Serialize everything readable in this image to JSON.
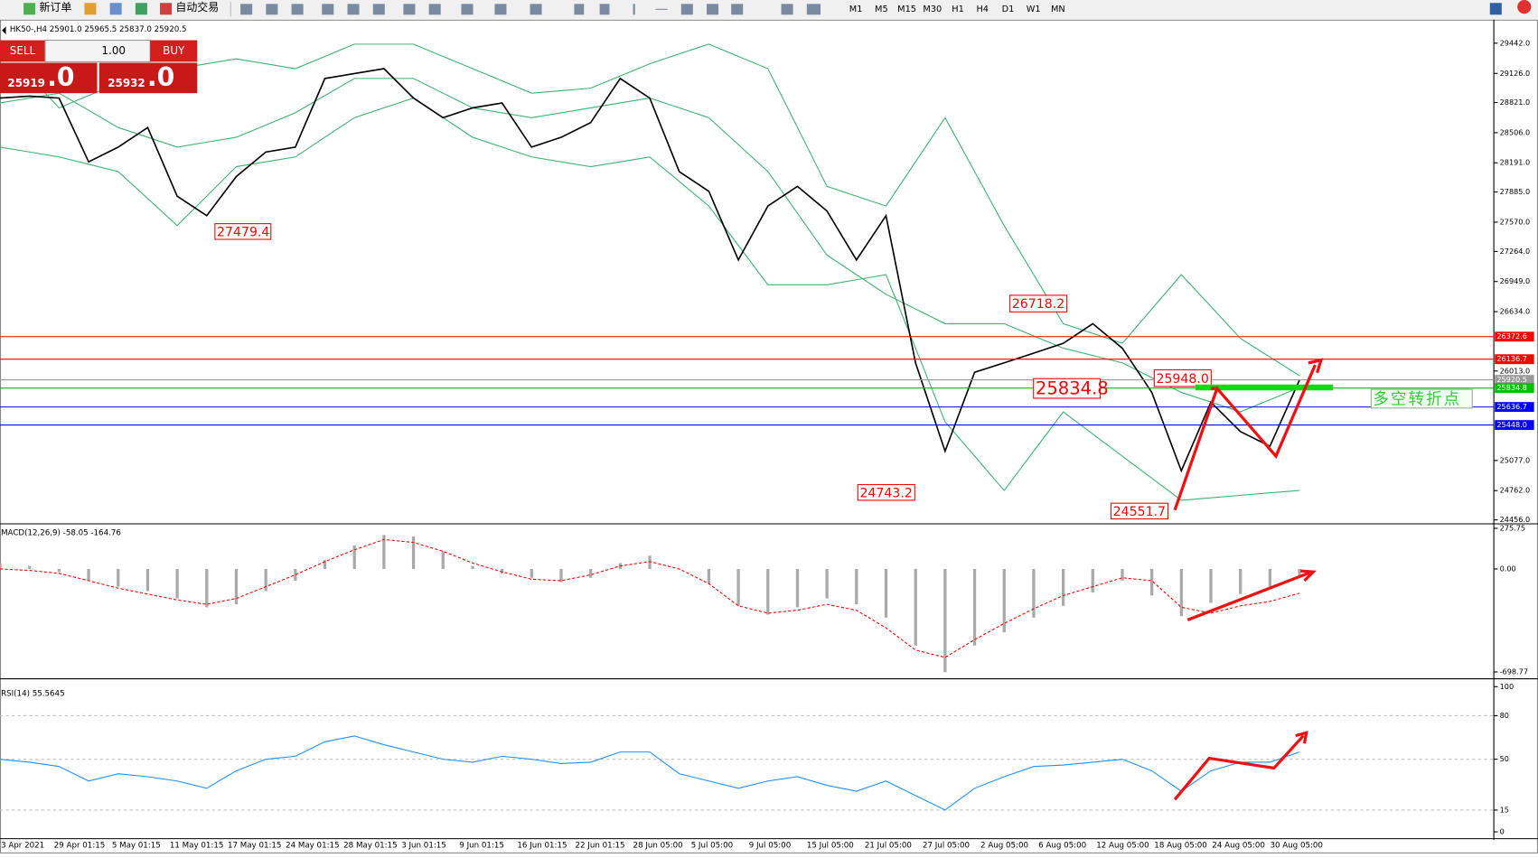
{
  "toolbar": {
    "new_order": "新订单",
    "auto_trading": "自动交易",
    "timeframes": [
      "M1",
      "M5",
      "M15",
      "M30",
      "H1",
      "H4",
      "D1",
      "W1",
      "MN"
    ]
  },
  "trade_panel": {
    "sell": "SELL",
    "lot": "1.00",
    "buy": "BUY",
    "bid_main": "25919",
    "bid_tail": ".0",
    "ask_main": "25932",
    "ask_tail": ".0"
  },
  "chart_header": "HK50-,H4  25901.0 25965.5 25837.0 25920.5",
  "time_axis": {
    "labels": [
      "3 Apr 2021",
      "29 Apr 01:15",
      "5 May 01:15",
      "11 May 01:15",
      "17 May 01:15",
      "24 May 01:15",
      "28 May 01:15",
      "3 Jun 01:15",
      "9 Jun 01:15",
      "16 Jun 01:15",
      "22 Jun 01:15",
      "28 Jun 05:00",
      "5 Jul 05:00",
      "9 Jul 05:00",
      "15 Jul 05:00",
      "21 Jul 05:00",
      "27 Jul 05:00",
      "2 Aug 05:00",
      "6 Aug 05:00",
      "12 Aug 05:00",
      "18 Aug 05:00",
      "24 Aug 05:00",
      "30 Aug 05:00"
    ]
  },
  "chart_data": [
    {
      "type": "line",
      "ylim": [
        24425,
        29668
      ],
      "yticks": [
        {
          "value": 29442,
          "label": "29442.0"
        },
        {
          "value": 29126,
          "label": "29126.0"
        },
        {
          "value": 28821,
          "label": "28821.0"
        },
        {
          "value": 28506,
          "label": "28506.0"
        },
        {
          "value": 28191,
          "label": "28191.0"
        },
        {
          "value": 27885,
          "label": "27885.0"
        },
        {
          "value": 27570,
          "label": "27570.0"
        },
        {
          "value": 27264,
          "label": "27264.0"
        },
        {
          "value": 26949,
          "label": "26949.0"
        },
        {
          "value": 26634,
          "label": "26634.0"
        },
        {
          "value": 26013,
          "label": "26013.0"
        },
        {
          "value": 25077,
          "label": "25077.0"
        },
        {
          "value": 24762,
          "label": "24762.0"
        },
        {
          "value": 24456,
          "label": "24456.0"
        }
      ],
      "series": [
        {
          "color": "#3cb371",
          "values": [
            29022,
            29099,
            28765,
            28894,
            29022,
            29099,
            29176,
            29227,
            29278,
            29227,
            29176,
            29304,
            29432,
            29432,
            29432,
            29304,
            29176,
            29048,
            28919,
            28945,
            28971,
            29099,
            29227,
            29330,
            29432,
            29304,
            29176,
            28561,
            27945,
            27842,
            27739,
            28201,
            28663,
            28099,
            27534,
            27021,
            26508,
            26406,
            26303,
            26662,
            27021,
            26688,
            26354,
            26159,
            25964
          ]
        },
        {
          "color": "#3cb371",
          "values": [
            28817,
            28868,
            28919,
            28740,
            28560,
            28458,
            28355,
            28407,
            28458,
            28586,
            28714,
            28894,
            29073,
            29073,
            29073,
            28919,
            28765,
            28714,
            28663,
            28714,
            28765,
            28817,
            28868,
            28766,
            28663,
            28381,
            28099,
            27663,
            27226,
            27021,
            26816,
            26662,
            26508,
            26508,
            26508,
            26380,
            26252,
            26175,
            26098,
            25944,
            25790,
            25688,
            25585,
            25713,
            25841
          ]
        },
        {
          "color": "#3cb371",
          "values": [
            28355,
            28304,
            28252,
            28176,
            28099,
            27817,
            27534,
            27842,
            28150,
            28201,
            28252,
            28458,
            28663,
            28766,
            28868,
            28663,
            28458,
            28355,
            28252,
            28201,
            28150,
            28201,
            28252,
            27996,
            27739,
            27327,
            26915,
            26915,
            26915,
            26968,
            27021,
            26252,
            25482,
            25123,
            24764,
            25175,
            25585,
            25354,
            25123,
            24892,
            24661,
            24687,
            24713,
            24739,
            24764
          ]
        },
        {
          "color": "#000000",
          "values": [
            28868,
            28888,
            28868,
            28201,
            28355,
            28560,
            27842,
            27637,
            28047,
            28303,
            28355,
            29073,
            29124,
            29176,
            28868,
            28663,
            28765,
            28816,
            28355,
            28457,
            28611,
            29073,
            28868,
            28098,
            27893,
            27175,
            27739,
            27944,
            27688,
            27175,
            27637,
            26098,
            25174,
            26000,
            26098,
            26200,
            26303,
            26508,
            26251,
            25790,
            24969,
            25687,
            25379,
            25226,
            25920
          ]
        }
      ],
      "levels": [
        {
          "value": 26372.6,
          "color": "#ff0000"
        },
        {
          "value": 26136.7,
          "color": "#ff0000"
        },
        {
          "value": 25920.5,
          "color": "#9a9a9a"
        },
        {
          "value": 25834.8,
          "color": "#00c000"
        },
        {
          "value": 25636.7,
          "color": "#0000ff"
        },
        {
          "value": {
            "value": 25448,
            "label": "25448.0"
          },
          "color": "#0000ff"
        }
      ],
      "annotations": [
        "27479.4",
        "26718.2",
        "25834.8",
        "25948.0",
        "24743.2",
        "24551.7",
        "多空转折点"
      ]
    },
    {
      "type": "bar",
      "title": "MACD(12,26,9) -58.05 -164.76",
      "ylim": [
        -732,
        293
      ],
      "yticks": [
        275.75,
        {
          "value": 0,
          "label": "0.00"
        },
        -698.77
      ],
      "series": [
        {
          "type": "bar",
          "color": "#a9a9a9",
          "values": [
            40,
            20,
            -20,
            -80,
            -120,
            -150,
            -200,
            -260,
            -240,
            -150,
            -80,
            60,
            160,
            230,
            220,
            120,
            20,
            -30,
            -60,
            -90,
            -60,
            40,
            90,
            0,
            -100,
            -250,
            -310,
            -260,
            -200,
            -240,
            -330,
            -520,
            -700,
            -520,
            -430,
            -330,
            -250,
            -160,
            -80,
            -180,
            -320,
            -230,
            -170,
            -120,
            -58
          ]
        },
        {
          "type": "line",
          "dashed": true,
          "color": "#ff0000",
          "values": [
            0,
            -10,
            -30,
            -80,
            -130,
            -170,
            -210,
            -240,
            -200,
            -120,
            -40,
            50,
            130,
            200,
            180,
            120,
            40,
            -20,
            -70,
            -80,
            -40,
            20,
            50,
            0,
            -100,
            -250,
            -300,
            -280,
            -240,
            -280,
            -400,
            -550,
            -600,
            -480,
            -370,
            -270,
            -180,
            -120,
            -60,
            -80,
            -260,
            -300,
            -250,
            -220,
            -165
          ]
        }
      ]
    },
    {
      "type": "line",
      "title": "RSI(14) 55.5645",
      "ylim": [
        0,
        100
      ],
      "yticks": [
        100,
        80,
        50,
        15,
        0
      ],
      "grid": true,
      "series": [
        {
          "color": "#1e90ff",
          "values": [
            50,
            48,
            45,
            35,
            40,
            38,
            35,
            30,
            42,
            50,
            52,
            62,
            66,
            60,
            55,
            50,
            48,
            52,
            50,
            47,
            48,
            55,
            55,
            40,
            35,
            30,
            35,
            38,
            32,
            28,
            35,
            25,
            15,
            30,
            38,
            45,
            46,
            48,
            50,
            42,
            28,
            42,
            48,
            48,
            55
          ]
        }
      ]
    }
  ]
}
